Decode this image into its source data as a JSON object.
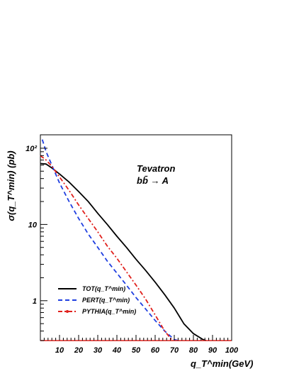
{
  "chart_data": {
    "type": "line",
    "xlabel": "q_T^min(GeV)",
    "ylabel": "σ(q_T^min) (pb)",
    "xlim": [
      0,
      100
    ],
    "ylim": [
      0.3,
      150
    ],
    "yscale": "log",
    "x_ticks": [
      10,
      20,
      30,
      40,
      50,
      60,
      70,
      80,
      90,
      100
    ],
    "y_ticks": [
      {
        "value": 1,
        "label": "1"
      },
      {
        "value": 10,
        "label": "10"
      },
      {
        "value": 100,
        "label": "10²"
      }
    ],
    "annotation_lines": [
      "Tevatron",
      "bb̄ → A"
    ],
    "series": [
      {
        "name": "TOT(q_T^min)",
        "color": "#000000",
        "dash": "solid",
        "x": [
          0,
          3,
          6,
          10,
          15,
          20,
          25,
          30,
          35,
          40,
          45,
          50,
          55,
          60,
          65,
          70,
          75,
          80,
          85,
          86.5
        ],
        "y": [
          63,
          62,
          55,
          46,
          36,
          27,
          20,
          14,
          10,
          7,
          5,
          3.5,
          2.5,
          1.75,
          1.2,
          0.8,
          0.5,
          0.37,
          0.31,
          0.3
        ]
      },
      {
        "name": "PERT(q_T^min)",
        "color": "#1f3fe0",
        "dash": "dashed",
        "x": [
          1,
          3,
          6,
          10,
          15,
          20,
          25,
          30,
          35,
          40,
          45,
          50,
          55,
          60,
          65,
          70,
          72
        ],
        "y": [
          130,
          90,
          60,
          35,
          20,
          12,
          7.5,
          5,
          3.3,
          2.3,
          1.6,
          1.1,
          0.78,
          0.55,
          0.4,
          0.31,
          0.3
        ]
      },
      {
        "name": "PYTHIA(q_T^min)",
        "color": "#e0201c",
        "dash": "dashdot",
        "x": [
          0,
          3,
          6,
          10,
          15,
          20,
          25,
          30,
          35,
          40,
          45,
          50,
          55,
          60,
          65,
          69
        ],
        "y": [
          80,
          70,
          58,
          42,
          28,
          18,
          12,
          8,
          5.2,
          3.6,
          2.4,
          1.6,
          1.05,
          0.65,
          0.4,
          0.3
        ]
      }
    ]
  }
}
